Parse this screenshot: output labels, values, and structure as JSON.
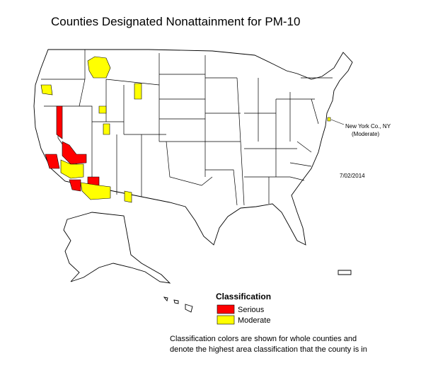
{
  "title": "Counties Designated Nonattainment for PM-10",
  "annotation": {
    "lines": [
      "New York Co., NY",
      "(Moderate)"
    ]
  },
  "date": "7/02/2014",
  "legend": {
    "title": "Classification",
    "items": [
      {
        "label": "Serious",
        "color": "#ff0000"
      },
      {
        "label": "Moderate",
        "color": "#ffff00"
      }
    ]
  },
  "note": [
    "Classification colors are shown for whole counties and",
    "denote the highest area classification that the county is in"
  ]
}
